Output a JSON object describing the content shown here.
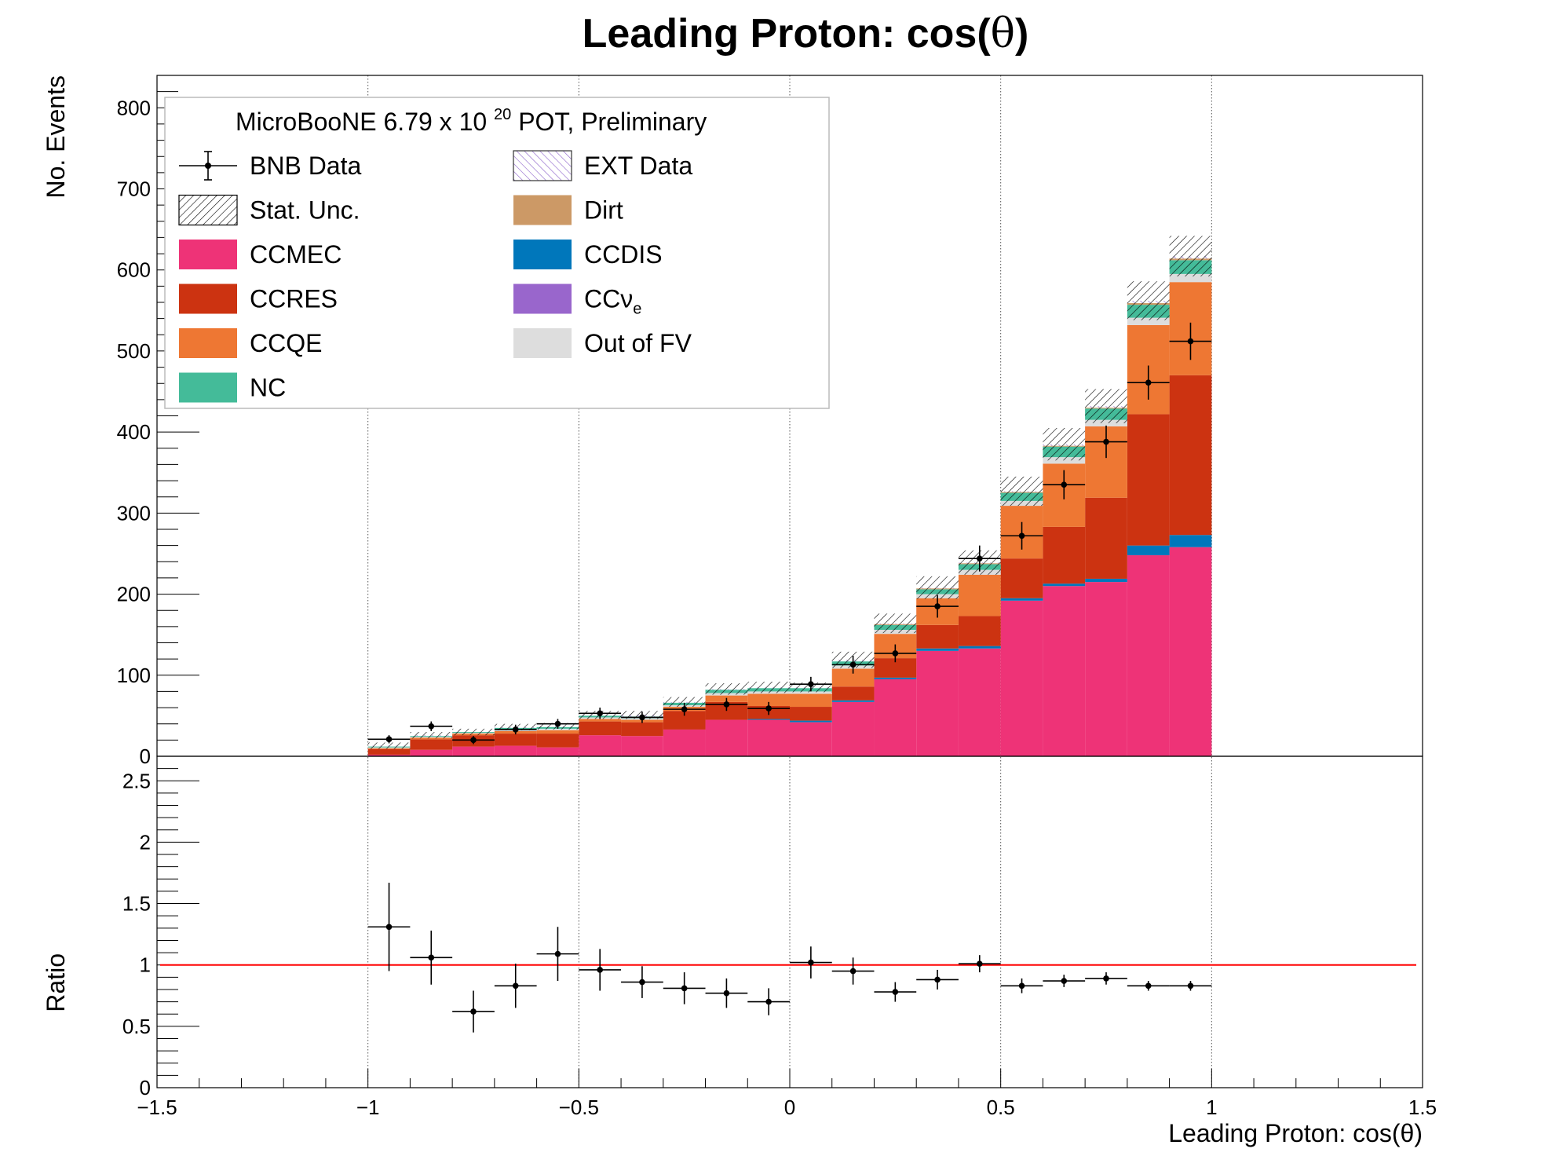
{
  "chart_data": [
    {
      "type": "bar",
      "stacked": true,
      "title": "Leading Proton: cos( θ)",
      "title_parts": [
        "Leading Proton: cos(",
        "θ",
        ")"
      ],
      "ylabel": "No. Events",
      "xlim": [
        -1.5,
        1.5
      ],
      "ylim": [
        0,
        840
      ],
      "x_tick_labels": [
        "−1.5",
        "−1",
        "−0.5",
        "0",
        "0.5",
        "1",
        "1.5"
      ],
      "y_tick_labels": [
        "0",
        "100",
        "200",
        "300",
        "400",
        "500",
        "600",
        "700",
        "800"
      ],
      "grid": "vertical dotted at x = -1, -0.5, 0, 0.5, 1",
      "bin_edges": [
        -1.0,
        -0.9,
        -0.8,
        -0.7,
        -0.6,
        -0.5,
        -0.4,
        -0.3,
        -0.2,
        -0.1,
        0.0,
        0.1,
        0.2,
        0.3,
        0.4,
        0.5,
        0.6,
        0.7,
        0.8,
        0.9,
        1.0
      ],
      "legend": {
        "position": "top-left",
        "header": [
          "MicroBooNE 6.79 x 10 ",
          "20",
          " POT, Preliminary"
        ],
        "entries": [
          {
            "label": "BNB Data",
            "marker": "data-point"
          },
          {
            "label": "EXT Data",
            "marker": "hatched",
            "color": "#8a5fc9"
          },
          {
            "label": "Stat. Unc.",
            "marker": "hatched",
            "color": "#000000"
          },
          {
            "label": "Dirt",
            "marker": "box",
            "color": "#cc9966"
          },
          {
            "label": "CCMEC",
            "marker": "box",
            "color": "#ee3377"
          },
          {
            "label": "CCDIS",
            "marker": "box",
            "color": "#0077bb"
          },
          {
            "label": "CCRES",
            "marker": "box",
            "color": "#cc3311"
          },
          {
            "label": "CCν",
            "sub": "e",
            "marker": "box",
            "color": "#9966cc"
          },
          {
            "label": "CCQE",
            "marker": "box",
            "color": "#ee7733"
          },
          {
            "label": "Out of FV",
            "marker": "box",
            "color": "#dddddd"
          },
          {
            "label": "NC",
            "marker": "box",
            "color": "#44bb99"
          }
        ]
      },
      "series": [
        {
          "name": "CCMEC",
          "color": "#ee3377",
          "values": [
            2,
            8,
            12,
            13,
            11,
            26,
            25,
            33,
            45,
            45,
            42,
            67,
            95,
            130,
            133,
            192,
            210,
            215,
            248,
            258
          ]
        },
        {
          "name": "CCDIS",
          "color": "#0077bb",
          "values": [
            0,
            0,
            0,
            0,
            0,
            0,
            0,
            0,
            0,
            1,
            2,
            2,
            2,
            3,
            3,
            3,
            3,
            4,
            12,
            15
          ]
        },
        {
          "name": "CCRES",
          "color": "#cc3311",
          "values": [
            7,
            13,
            14,
            15,
            17,
            17,
            17,
            23,
            22,
            16,
            17,
            17,
            24,
            29,
            37,
            49,
            70,
            100,
            162,
            197
          ]
        },
        {
          "name": "CCQE",
          "color": "#ee7733",
          "values": [
            1,
            2,
            2,
            3,
            4,
            3,
            3,
            5,
            8,
            15,
            16,
            22,
            30,
            33,
            51,
            65,
            78,
            88,
            110,
            115
          ]
        },
        {
          "name": "CCν e",
          "color": "#9966cc",
          "values": [
            0,
            0,
            0,
            0,
            0,
            0,
            0,
            0,
            0,
            0,
            0,
            0,
            0,
            0,
            0,
            0,
            0,
            0,
            0,
            0
          ]
        },
        {
          "name": "Out of FV",
          "color": "#dddddd",
          "values": [
            1,
            1,
            1,
            2,
            2,
            2,
            2,
            2,
            3,
            3,
            3,
            4,
            5,
            5,
            6,
            6,
            8,
            8,
            9,
            10
          ]
        },
        {
          "name": "NC",
          "color": "#44bb99",
          "values": [
            1,
            1,
            1,
            2,
            2,
            2,
            2,
            3,
            4,
            4,
            4,
            5,
            6,
            6,
            7,
            10,
            13,
            14,
            16,
            17
          ]
        },
        {
          "name": "Dirt",
          "color": "#cc9966",
          "values": [
            0,
            0,
            0,
            0,
            0,
            0,
            0,
            0,
            0,
            0,
            0,
            0,
            1,
            1,
            1,
            1,
            1,
            1,
            2,
            2
          ]
        },
        {
          "name": "EXT Data",
          "color": "#8a5fc9",
          "values": [
            1,
            1,
            0,
            1,
            1,
            1,
            2,
            1,
            1,
            1,
            1,
            2,
            1,
            1,
            1,
            1,
            2,
            2,
            3,
            3
          ]
        }
      ],
      "stat_unc": [
        4,
        4,
        4,
        4,
        4,
        5,
        5,
        6,
        7,
        7,
        6,
        10,
        12,
        14,
        15,
        18,
        20,
        21,
        24,
        25
      ],
      "data_points": {
        "name": "BNB Data",
        "x": [
          -0.95,
          -0.85,
          -0.75,
          -0.65,
          -0.55,
          -0.45,
          -0.35,
          -0.25,
          -0.15,
          -0.05,
          0.05,
          0.15,
          0.25,
          0.35,
          0.45,
          0.55,
          0.65,
          0.75,
          0.85,
          0.95
        ],
        "y": [
          21,
          37,
          20,
          33,
          40,
          53,
          48,
          58,
          64,
          59,
          89,
          113,
          127,
          185,
          244,
          272,
          335,
          388,
          461,
          512
        ],
        "yerr": [
          5,
          6,
          5,
          6,
          6,
          7,
          7,
          8,
          8,
          8,
          9,
          11,
          11,
          14,
          16,
          17,
          18,
          20,
          21,
          23
        ]
      }
    },
    {
      "type": "scatter",
      "xlabel": "Leading Proton: cos(θ)",
      "ylabel": "Ratio",
      "xlim": [
        -1.5,
        1.5
      ],
      "ylim": [
        0,
        2.7
      ],
      "x_tick_labels": [
        "−1.5",
        "−1",
        "−0.5",
        "0",
        "0.5",
        "1",
        "1.5"
      ],
      "y_tick_labels": [
        "0",
        "0.5",
        "1",
        "1.5",
        "2",
        "2.5"
      ],
      "reference_line": {
        "y": 1,
        "color": "#ff0000"
      },
      "x": [
        -0.95,
        -0.85,
        -0.75,
        -0.65,
        -0.55,
        -0.45,
        -0.35,
        -0.25,
        -0.15,
        -0.05,
        0.05,
        0.15,
        0.25,
        0.35,
        0.45,
        0.55,
        0.65,
        0.75,
        0.85,
        0.95
      ],
      "y": [
        1.31,
        1.06,
        0.62,
        0.83,
        1.09,
        0.96,
        0.86,
        0.81,
        0.77,
        0.7,
        1.02,
        0.95,
        0.78,
        0.88,
        1.01,
        0.83,
        0.87,
        0.89,
        0.83,
        0.83
      ],
      "yerr": [
        0.36,
        0.22,
        0.17,
        0.18,
        0.22,
        0.17,
        0.13,
        0.13,
        0.12,
        0.11,
        0.13,
        0.11,
        0.08,
        0.08,
        0.07,
        0.06,
        0.05,
        0.05,
        0.04,
        0.04
      ]
    }
  ]
}
